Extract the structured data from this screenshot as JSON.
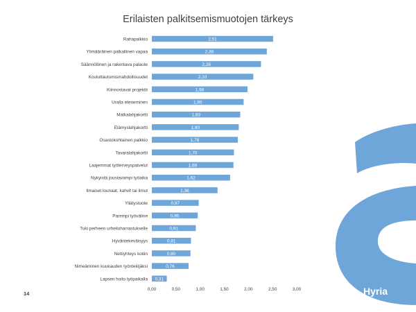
{
  "slide": {
    "title": "Erilaisten palkitsemismuotojen tärkeys",
    "page_number": "14",
    "brand": {
      "name": "Hyria",
      "color": "#6fa6d9"
    }
  },
  "chart_data": {
    "type": "bar",
    "orientation": "horizontal",
    "title": "Erilaisten palkitsemismuotojen tärkeys",
    "xlabel": "",
    "ylabel": "",
    "xlim": [
      0,
      3
    ],
    "x_ticks": [
      "0,00",
      "0,50",
      "1,00",
      "1,50",
      "2,00",
      "2,50",
      "3,00"
    ],
    "grid": false,
    "bar_color": "#6fa6d9",
    "categories": [
      "Rahapalkkio",
      "Ylimääräinen palkallinen vapaa",
      "Säännöllinen ja rakentava palaute",
      "Kouluttautumismahdollisuudet",
      "Kiinnostavat projektit",
      "Uralla eteneminen",
      "Matkalahjakortti",
      "Elämyslahjakortti",
      "Osastokohtainen palkkio",
      "Tavaralahjakortti",
      "Laajemmat työterveyspalvelut",
      "Nykyistä joustavampi työaika",
      "Ilmaiset lounaat, kahvit tai limut",
      "Yllätystuote",
      "Parempi työväline",
      "Tuki perheen urheiluharrastukselle",
      "Hyväntekeväisyys",
      "Nettiyhteys kotiin",
      "Nimeäminen kuukauden työntekijäksi",
      "Lapsen hoito työpaikalla"
    ],
    "values": [
      2.51,
      2.38,
      2.26,
      2.1,
      1.98,
      1.9,
      1.83,
      1.8,
      1.78,
      1.7,
      1.69,
      1.62,
      1.36,
      0.97,
      0.95,
      0.91,
      0.81,
      0.8,
      0.76,
      0.31
    ],
    "data_labels": [
      "2,51",
      "2,38",
      "2,26",
      "2,10",
      "1,98",
      "1,90",
      "1,83",
      "1,80",
      "1,78",
      "1,70",
      "1,69",
      "1,62",
      "1,36",
      "0,97",
      "0,95",
      "0,91",
      "0,81",
      "0,80",
      "0,76",
      "0,31"
    ]
  }
}
